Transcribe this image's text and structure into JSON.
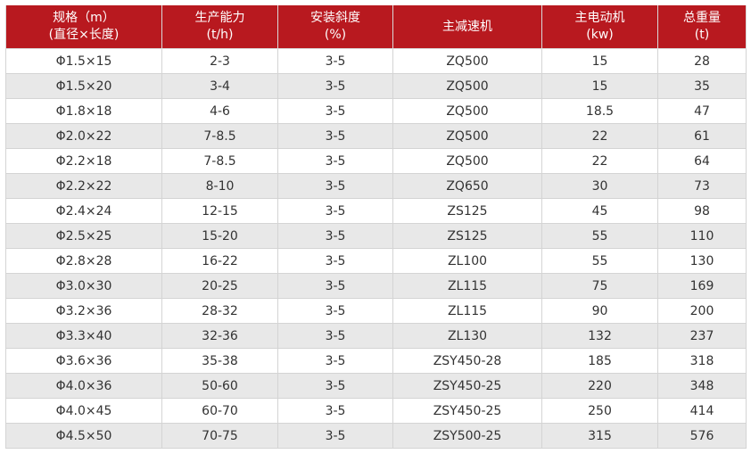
{
  "colors": {
    "header_bg": "#b8191f",
    "alt_row_bg": "#e8e8e8"
  },
  "headers": [
    [
      "规格（m）",
      "(直径×长度)"
    ],
    [
      "生产能力",
      "(t/h)"
    ],
    [
      "安装斜度",
      "(%)"
    ],
    [
      "主减速机",
      ""
    ],
    [
      "主电动机",
      "(kw)"
    ],
    [
      "总重量",
      "(t)"
    ]
  ],
  "rows": [
    [
      "Φ1.5×15",
      "2-3",
      "3-5",
      "ZQ500",
      "15",
      "28"
    ],
    [
      "Φ1.5×20",
      "3-4",
      "3-5",
      "ZQ500",
      "15",
      "35"
    ],
    [
      "Φ1.8×18",
      "4-6",
      "3-5",
      "ZQ500",
      "18.5",
      "47"
    ],
    [
      "Φ2.0×22",
      "7-8.5",
      "3-5",
      "ZQ500",
      "22",
      "61"
    ],
    [
      "Φ2.2×18",
      "7-8.5",
      "3-5",
      "ZQ500",
      "22",
      "64"
    ],
    [
      "Φ2.2×22",
      "8-10",
      "3-5",
      "ZQ650",
      "30",
      "73"
    ],
    [
      "Φ2.4×24",
      "12-15",
      "3-5",
      "ZS125",
      "45",
      "98"
    ],
    [
      "Φ2.5×25",
      "15-20",
      "3-5",
      "ZS125",
      "55",
      "110"
    ],
    [
      "Φ2.8×28",
      "16-22",
      "3-5",
      "ZL100",
      "55",
      "130"
    ],
    [
      "Φ3.0×30",
      "20-25",
      "3-5",
      "ZL115",
      "75",
      "169"
    ],
    [
      "Φ3.2×36",
      "28-32",
      "3-5",
      "ZL115",
      "90",
      "200"
    ],
    [
      "Φ3.3×40",
      "32-36",
      "3-5",
      "ZL130",
      "132",
      "237"
    ],
    [
      "Φ3.6×36",
      "35-38",
      "3-5",
      "ZSY450-28",
      "185",
      "318"
    ],
    [
      "Φ4.0×36",
      "50-60",
      "3-5",
      "ZSY450-25",
      "220",
      "348"
    ],
    [
      "Φ4.0×45",
      "60-70",
      "3-5",
      "ZSY450-25",
      "250",
      "414"
    ],
    [
      "Φ4.5×50",
      "70-75",
      "3-5",
      "ZSY500-25",
      "315",
      "576"
    ]
  ]
}
